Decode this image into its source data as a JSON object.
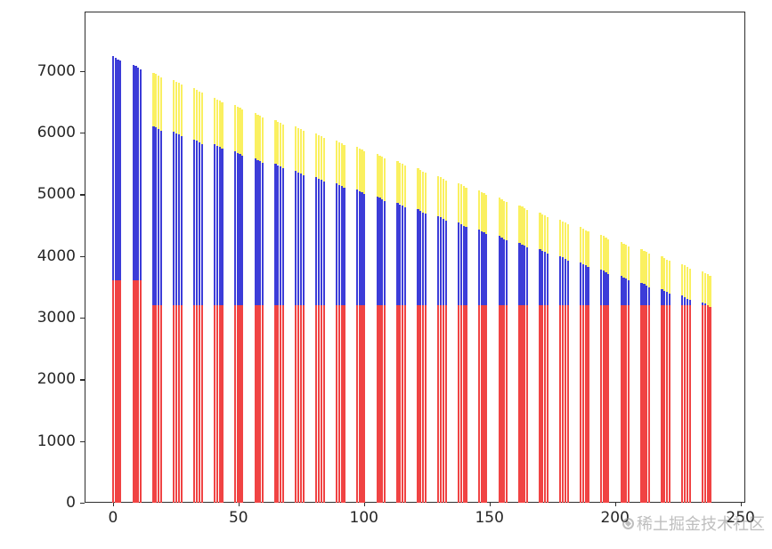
{
  "watermark": {
    "text": "稀土掘金技术社区",
    "logo_icon": "juejin-logo",
    "color": "#8a8a8a"
  },
  "chart_data": {
    "type": "bar",
    "stacked": true,
    "title": "",
    "xlabel": "",
    "ylabel": "",
    "grid": false,
    "legend": "none",
    "x_ticks": [
      0,
      50,
      100,
      150,
      200,
      250
    ],
    "y_ticks": [
      0,
      1000,
      2000,
      3000,
      4000,
      5000,
      6000,
      7000
    ],
    "xlim": [
      -11.3,
      251.9
    ],
    "ylim": [
      0,
      7965
    ],
    "axis_color": "#2e2e2e",
    "colors": {
      "red": "#f04343",
      "blue": "#3c3cd8",
      "yellow": "#faf060"
    },
    "series_names": [
      "red-bottom",
      "blue-middle",
      "yellow-top"
    ],
    "bars_per_cluster": 4,
    "bar_width_units": 0.8,
    "bar_x_step_units": 1.0,
    "within_cluster_top_drop": 24,
    "clusters": [
      {
        "x": 0,
        "red_top": 3610,
        "blue_top": 7240,
        "yellow_top": 7240
      },
      {
        "x": 8.1,
        "red_top": 3610,
        "blue_top": 7105,
        "yellow_top": 7105
      },
      {
        "x": 16.2,
        "red_top": 3205,
        "blue_top": 6110,
        "yellow_top": 6975
      },
      {
        "x": 24.3,
        "red_top": 3205,
        "blue_top": 6015,
        "yellow_top": 6855
      },
      {
        "x": 32.4,
        "red_top": 3205,
        "blue_top": 5890,
        "yellow_top": 6720
      },
      {
        "x": 40.5,
        "red_top": 3205,
        "blue_top": 5815,
        "yellow_top": 6565
      },
      {
        "x": 48.6,
        "red_top": 3205,
        "blue_top": 5700,
        "yellow_top": 6450
      },
      {
        "x": 56.7,
        "red_top": 3205,
        "blue_top": 5585,
        "yellow_top": 6320
      },
      {
        "x": 64.8,
        "red_top": 3205,
        "blue_top": 5500,
        "yellow_top": 6205
      },
      {
        "x": 72.9,
        "red_top": 3205,
        "blue_top": 5380,
        "yellow_top": 6105
      },
      {
        "x": 81.0,
        "red_top": 3205,
        "blue_top": 5280,
        "yellow_top": 5990
      },
      {
        "x": 89.1,
        "red_top": 3205,
        "blue_top": 5180,
        "yellow_top": 5875
      },
      {
        "x": 97.2,
        "red_top": 3205,
        "blue_top": 5080,
        "yellow_top": 5770
      },
      {
        "x": 105.3,
        "red_top": 3205,
        "blue_top": 4970,
        "yellow_top": 5655
      },
      {
        "x": 113.4,
        "red_top": 3205,
        "blue_top": 4865,
        "yellow_top": 5540
      },
      {
        "x": 121.5,
        "red_top": 3205,
        "blue_top": 4755,
        "yellow_top": 5420
      },
      {
        "x": 129.6,
        "red_top": 3205,
        "blue_top": 4650,
        "yellow_top": 5300
      },
      {
        "x": 137.7,
        "red_top": 3205,
        "blue_top": 4540,
        "yellow_top": 5185
      },
      {
        "x": 145.8,
        "red_top": 3205,
        "blue_top": 4430,
        "yellow_top": 5065
      },
      {
        "x": 153.9,
        "red_top": 3205,
        "blue_top": 4325,
        "yellow_top": 4945
      },
      {
        "x": 162.0,
        "red_top": 3205,
        "blue_top": 4215,
        "yellow_top": 4825
      },
      {
        "x": 170.1,
        "red_top": 3205,
        "blue_top": 4110,
        "yellow_top": 4705
      },
      {
        "x": 178.2,
        "red_top": 3205,
        "blue_top": 4000,
        "yellow_top": 4590
      },
      {
        "x": 186.3,
        "red_top": 3205,
        "blue_top": 3895,
        "yellow_top": 4470
      },
      {
        "x": 194.4,
        "red_top": 3205,
        "blue_top": 3785,
        "yellow_top": 4350
      },
      {
        "x": 202.5,
        "red_top": 3205,
        "blue_top": 3680,
        "yellow_top": 4230
      },
      {
        "x": 210.6,
        "red_top": 3205,
        "blue_top": 3570,
        "yellow_top": 4110
      },
      {
        "x": 218.7,
        "red_top": 3205,
        "blue_top": 3465,
        "yellow_top": 3990
      },
      {
        "x": 226.8,
        "red_top": 3205,
        "blue_top": 3355,
        "yellow_top": 3870
      },
      {
        "x": 234.9,
        "red_top": 3205,
        "blue_top": 3250,
        "yellow_top": 3750
      }
    ]
  }
}
